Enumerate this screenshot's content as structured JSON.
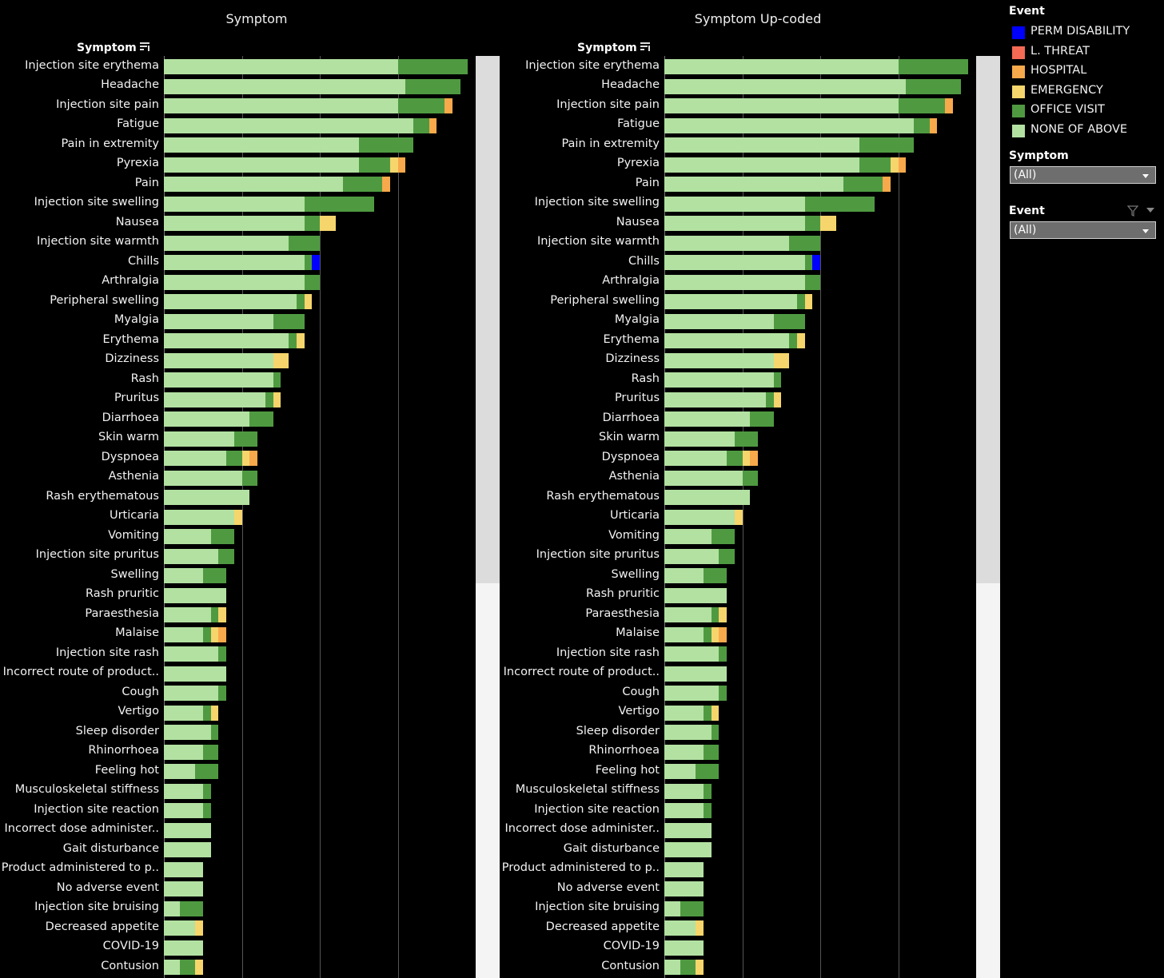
{
  "panels": [
    {
      "title": "Symptom",
      "field_header": "Symptom"
    },
    {
      "title": "Symptom Up-coded",
      "field_header": "Symptom"
    }
  ],
  "legend": {
    "title": "Event",
    "items": [
      {
        "label": "PERM DISABILITY",
        "color": "#0000ff"
      },
      {
        "label": "L. THREAT",
        "color": "#f46a55"
      },
      {
        "label": "HOSPITAL",
        "color": "#f8a94b"
      },
      {
        "label": "EMERGENCY",
        "color": "#f6d56c"
      },
      {
        "label": "OFFICE VISIT",
        "color": "#4f9a41"
      },
      {
        "label": "NONE OF ABOVE",
        "color": "#b3e1a2"
      }
    ]
  },
  "filters": [
    {
      "title": "Symptom",
      "value": "(All)"
    },
    {
      "title": "Event",
      "value": "(All)"
    }
  ],
  "chart_data": [
    {
      "type": "bar",
      "orientation": "horizontal",
      "stacked": true,
      "title": "Symptom",
      "categories": [
        "Injection site erythema",
        "Headache",
        "Injection site pain",
        "Fatigue",
        "Pain in extremity",
        "Pyrexia",
        "Pain",
        "Injection site swelling",
        "Nausea",
        "Injection site warmth",
        "Chills",
        "Arthralgia",
        "Peripheral swelling",
        "Myalgia",
        "Erythema",
        "Dizziness",
        "Rash",
        "Pruritus",
        "Diarrhoea",
        "Skin warm",
        "Dyspnoea",
        "Asthenia",
        "Rash erythematous",
        "Urticaria",
        "Vomiting",
        "Injection site pruritus",
        "Swelling",
        "Rash pruritic",
        "Paraesthesia",
        "Malaise",
        "Injection site rash",
        "Incorrect route of product..",
        "Cough",
        "Vertigo",
        "Sleep disorder",
        "Rhinorrhoea",
        "Feeling hot",
        "Musculoskeletal stiffness",
        "Injection site reaction",
        "Incorrect dose administer..",
        "Gait disturbance",
        "Product administered to p..",
        "No adverse event",
        "Injection site bruising",
        "Decreased appetite",
        "COVID-19",
        "Contusion"
      ],
      "series": [
        {
          "name": "NONE OF ABOVE",
          "values": [
            30,
            31,
            30,
            32,
            25,
            25,
            23,
            18,
            18,
            16,
            18,
            18,
            17,
            14,
            16,
            14,
            14,
            13,
            11,
            9,
            8,
            10,
            11,
            9,
            6,
            7,
            5,
            8,
            6,
            5,
            7,
            8,
            7,
            5,
            6,
            5,
            4,
            5,
            5,
            6,
            6,
            5,
            5,
            2,
            4,
            5,
            2
          ]
        },
        {
          "name": "OFFICE VISIT",
          "values": [
            9,
            7,
            6,
            2,
            7,
            4,
            5,
            9,
            2,
            4,
            1,
            2,
            1,
            4,
            1,
            0,
            1,
            1,
            3,
            3,
            2,
            2,
            0,
            0,
            3,
            2,
            3,
            0,
            1,
            1,
            1,
            0,
            1,
            1,
            1,
            2,
            3,
            1,
            1,
            0,
            0,
            0,
            0,
            3,
            0,
            0,
            2
          ]
        },
        {
          "name": "EMERGENCY",
          "values": [
            0,
            0,
            0,
            0,
            0,
            1,
            0,
            0,
            2,
            0,
            0,
            0,
            1,
            0,
            1,
            2,
            0,
            1,
            0,
            0,
            1,
            0,
            0,
            1,
            0,
            0,
            0,
            0,
            1,
            1,
            0,
            0,
            0,
            1,
            0,
            0,
            0,
            0,
            0,
            0,
            0,
            0,
            0,
            0,
            1,
            0,
            1
          ]
        },
        {
          "name": "HOSPITAL",
          "values": [
            0,
            0,
            1,
            1,
            0,
            1,
            1,
            0,
            0,
            0,
            0,
            0,
            0,
            0,
            0,
            0,
            0,
            0,
            0,
            0,
            1,
            0,
            0,
            0,
            0,
            0,
            0,
            0,
            0,
            1,
            0,
            0,
            0,
            0,
            0,
            0,
            0,
            0,
            0,
            0,
            0,
            0,
            0,
            0,
            0,
            0,
            0
          ]
        },
        {
          "name": "L. THREAT",
          "values": [
            0,
            0,
            0,
            0,
            0,
            0,
            0,
            0,
            0,
            0,
            0,
            0,
            0,
            0,
            0,
            0,
            0,
            0,
            0,
            0,
            0,
            0,
            0,
            0,
            0,
            0,
            0,
            0,
            0,
            0,
            0,
            0,
            0,
            0,
            0,
            0,
            0,
            0,
            0,
            0,
            0,
            0,
            0,
            0,
            0,
            0,
            0
          ]
        },
        {
          "name": "PERM DISABILITY",
          "values": [
            0,
            0,
            0,
            0,
            0,
            0,
            0,
            0,
            0,
            0,
            1,
            0,
            0,
            0,
            0,
            0,
            0,
            0,
            0,
            0,
            0,
            0,
            0,
            0,
            0,
            0,
            0,
            0,
            0,
            0,
            0,
            0,
            0,
            0,
            0,
            0,
            0,
            0,
            0,
            0,
            0,
            0,
            0,
            0,
            0,
            0,
            0
          ]
        }
      ],
      "xlim": [
        0,
        40
      ],
      "grid": true
    },
    {
      "type": "bar",
      "orientation": "horizontal",
      "stacked": true,
      "title": "Symptom Up-coded",
      "categories": [
        "Injection site erythema",
        "Headache",
        "Injection site pain",
        "Fatigue",
        "Pain in extremity",
        "Pyrexia",
        "Pain",
        "Injection site swelling",
        "Nausea",
        "Injection site warmth",
        "Chills",
        "Arthralgia",
        "Peripheral swelling",
        "Myalgia",
        "Erythema",
        "Dizziness",
        "Rash",
        "Pruritus",
        "Diarrhoea",
        "Skin warm",
        "Dyspnoea",
        "Asthenia",
        "Rash erythematous",
        "Urticaria",
        "Vomiting",
        "Injection site pruritus",
        "Swelling",
        "Rash pruritic",
        "Paraesthesia",
        "Malaise",
        "Injection site rash",
        "Incorrect route of product..",
        "Cough",
        "Vertigo",
        "Sleep disorder",
        "Rhinorrhoea",
        "Feeling hot",
        "Musculoskeletal stiffness",
        "Injection site reaction",
        "Incorrect dose administer..",
        "Gait disturbance",
        "Product administered to p..",
        "No adverse event",
        "Injection site bruising",
        "Decreased appetite",
        "COVID-19",
        "Contusion"
      ],
      "series": [
        {
          "name": "NONE OF ABOVE",
          "values": [
            30,
            31,
            30,
            32,
            25,
            25,
            23,
            18,
            18,
            16,
            18,
            18,
            17,
            14,
            16,
            14,
            14,
            13,
            11,
            9,
            8,
            10,
            11,
            9,
            6,
            7,
            5,
            8,
            6,
            5,
            7,
            8,
            7,
            5,
            6,
            5,
            4,
            5,
            5,
            6,
            6,
            5,
            5,
            2,
            4,
            5,
            2
          ]
        },
        {
          "name": "OFFICE VISIT",
          "values": [
            9,
            7,
            6,
            2,
            7,
            4,
            5,
            9,
            2,
            4,
            1,
            2,
            1,
            4,
            1,
            0,
            1,
            1,
            3,
            3,
            2,
            2,
            0,
            0,
            3,
            2,
            3,
            0,
            1,
            1,
            1,
            0,
            1,
            1,
            1,
            2,
            3,
            1,
            1,
            0,
            0,
            0,
            0,
            3,
            0,
            0,
            2
          ]
        },
        {
          "name": "EMERGENCY",
          "values": [
            0,
            0,
            0,
            0,
            0,
            1,
            0,
            0,
            2,
            0,
            0,
            0,
            1,
            0,
            1,
            2,
            0,
            1,
            0,
            0,
            1,
            0,
            0,
            1,
            0,
            0,
            0,
            0,
            1,
            1,
            0,
            0,
            0,
            1,
            0,
            0,
            0,
            0,
            0,
            0,
            0,
            0,
            0,
            0,
            1,
            0,
            1
          ]
        },
        {
          "name": "HOSPITAL",
          "values": [
            0,
            0,
            1,
            1,
            0,
            1,
            1,
            0,
            0,
            0,
            0,
            0,
            0,
            0,
            0,
            0,
            0,
            0,
            0,
            0,
            1,
            0,
            0,
            0,
            0,
            0,
            0,
            0,
            0,
            1,
            0,
            0,
            0,
            0,
            0,
            0,
            0,
            0,
            0,
            0,
            0,
            0,
            0,
            0,
            0,
            0,
            0
          ]
        },
        {
          "name": "L. THREAT",
          "values": [
            0,
            0,
            0,
            0,
            0,
            0,
            0,
            0,
            0,
            0,
            0,
            0,
            0,
            0,
            0,
            0,
            0,
            0,
            0,
            0,
            0,
            0,
            0,
            0,
            0,
            0,
            0,
            0,
            0,
            0,
            0,
            0,
            0,
            0,
            0,
            0,
            0,
            0,
            0,
            0,
            0,
            0,
            0,
            0,
            0,
            0,
            0
          ]
        },
        {
          "name": "PERM DISABILITY",
          "values": [
            0,
            0,
            0,
            0,
            0,
            0,
            0,
            0,
            0,
            0,
            1,
            0,
            0,
            0,
            0,
            0,
            0,
            0,
            0,
            0,
            0,
            0,
            0,
            0,
            0,
            0,
            0,
            0,
            0,
            0,
            0,
            0,
            0,
            0,
            0,
            0,
            0,
            0,
            0,
            0,
            0,
            0,
            0,
            0,
            0,
            0,
            0
          ]
        }
      ],
      "xlim": [
        0,
        40
      ],
      "grid": true
    }
  ]
}
